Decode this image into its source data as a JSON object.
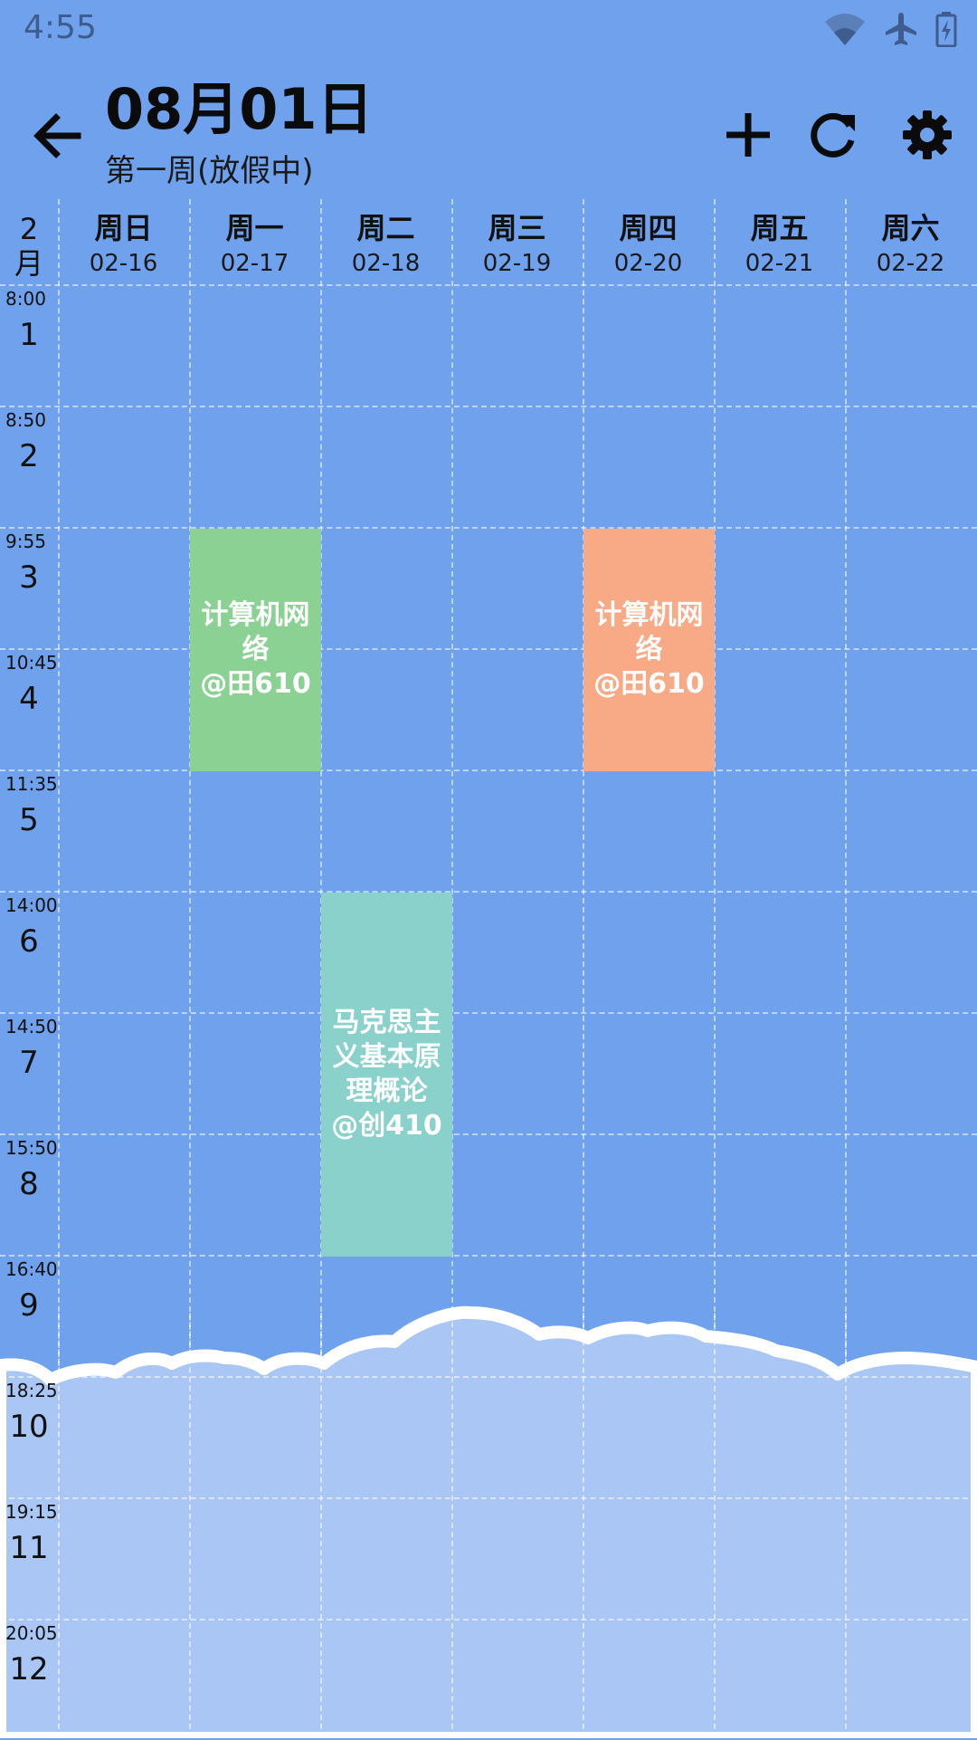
{
  "status_bar": {
    "time": "4:55",
    "icons": [
      "wifi-icon",
      "airplane-icon",
      "battery-icon"
    ]
  },
  "header": {
    "title": "08月01日",
    "subtitle": "第一周(放假中)",
    "actions": [
      "back-arrow-icon",
      "add-icon",
      "refresh-icon",
      "settings-icon"
    ]
  },
  "schedule": {
    "month": "2\n月",
    "days": [
      {
        "name": "周日",
        "date": "02-16"
      },
      {
        "name": "周一",
        "date": "02-17"
      },
      {
        "name": "周二",
        "date": "02-18"
      },
      {
        "name": "周三",
        "date": "02-19"
      },
      {
        "name": "周四",
        "date": "02-20"
      },
      {
        "name": "周五",
        "date": "02-21"
      },
      {
        "name": "周六",
        "date": "02-22"
      }
    ],
    "periods": [
      {
        "time": "8:00",
        "num": "1"
      },
      {
        "time": "8:50",
        "num": "2"
      },
      {
        "time": "9:55",
        "num": "3"
      },
      {
        "time": "10:45",
        "num": "4"
      },
      {
        "time": "11:35",
        "num": "5"
      },
      {
        "time": "14:00",
        "num": "6"
      },
      {
        "time": "14:50",
        "num": "7"
      },
      {
        "time": "15:50",
        "num": "8"
      },
      {
        "time": "16:40",
        "num": "9"
      },
      {
        "time": "18:25",
        "num": "10"
      },
      {
        "time": "19:15",
        "num": "11"
      },
      {
        "time": "20:05",
        "num": "12"
      }
    ],
    "courses": [
      {
        "text": "计算机网络\n@田610",
        "day": "周一",
        "periods": "3-4",
        "color": "#8bd193"
      },
      {
        "text": "马克思主义基本原理概论\n@创410",
        "day": "周二",
        "periods": "6-8",
        "color": "#8ad0cb"
      },
      {
        "text": "计算机网络\n@田610",
        "day": "周四",
        "periods": "3-4",
        "color": "#f8a986"
      }
    ]
  },
  "colors": {
    "background": "#6fa1ec",
    "cloud": "#a9c6f5",
    "cloud_outline": "#ffffff"
  }
}
